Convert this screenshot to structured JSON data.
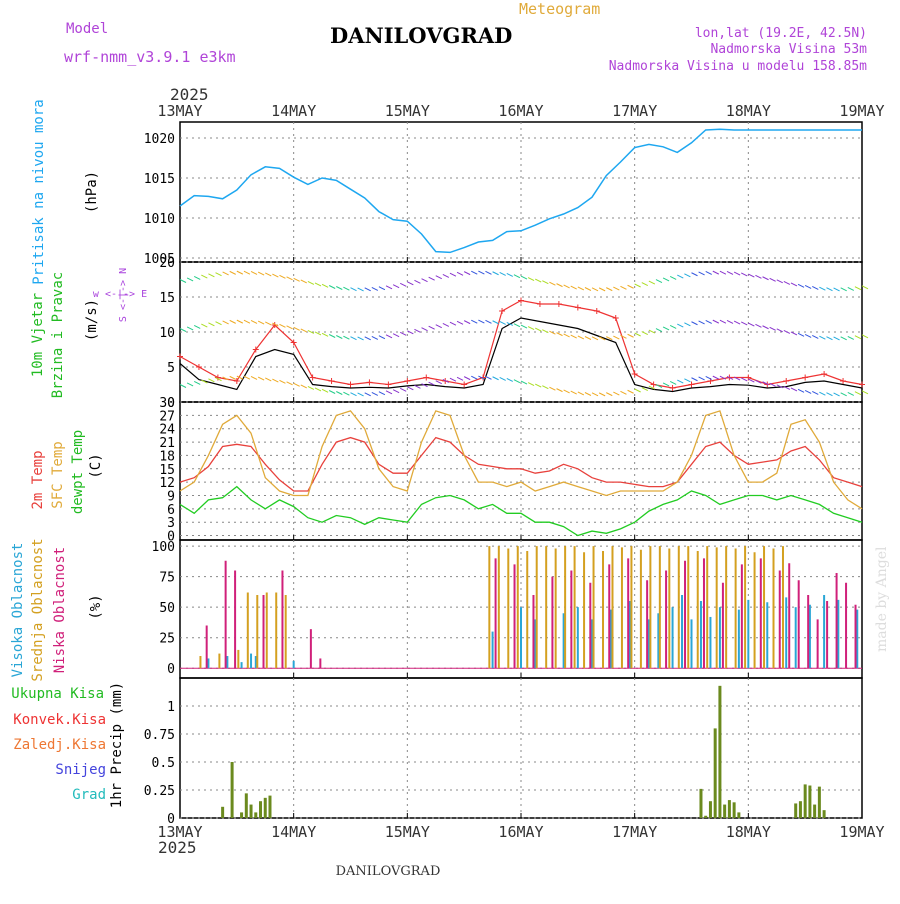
{
  "header": {
    "model_label": "Model",
    "model_name": "wrf-nmm_v3.9.1 e3km",
    "meteogram_label": "Meteogram",
    "station": "DANILOVGRAD",
    "coords": "lon,lat (19.2E, 42.5N)",
    "altitude": "Nadmorska Visina 53m",
    "model_altitude": "Nadmorska Visina u modelu 158.85m",
    "year": "2025",
    "footer_station": "DANILOVGRAD",
    "watermark": "made by Angel"
  },
  "colors": {
    "pressure": "#1ea7f0",
    "temp2m": "#e8413c",
    "sfc": "#e0aa3a",
    "dewpt": "#22cc22",
    "high": "#2aa6d6",
    "mid": "#d4a020",
    "low": "#d0207a",
    "total": "#22bb22",
    "conv": "#ee3333",
    "frozen": "#ee7733",
    "snow": "#4444dd",
    "grad": "#22bbbb",
    "wind_label": "#aa44dd"
  },
  "chart_data": [
    {
      "type": "line",
      "panel": "pressure",
      "ylabel": "Pritisak na nivou mora",
      "unit": "(hPa)",
      "x_ticks": [
        "13MAY",
        "14MAY",
        "15MAY",
        "16MAY",
        "17MAY",
        "18MAY",
        "19MAY"
      ],
      "ylim": [
        1004.5,
        1022
      ],
      "yticks": [
        1005,
        1010,
        1015,
        1020
      ],
      "x_hours": [
        0,
        3,
        6,
        9,
        12,
        15,
        18,
        21,
        24,
        27,
        30,
        33,
        36,
        39,
        42,
        45,
        48,
        51,
        54,
        57,
        60,
        63,
        66,
        69,
        72,
        75,
        78,
        81,
        84,
        87,
        90,
        93,
        96,
        99,
        102,
        105,
        108,
        111,
        114,
        117,
        120,
        123,
        126,
        129,
        132,
        135,
        138,
        141,
        144
      ],
      "values": [
        1011.5,
        1012.8,
        1012.7,
        1012.4,
        1013.5,
        1015.4,
        1016.4,
        1016.2,
        1015.1,
        1014.2,
        1015.0,
        1014.7,
        1013.6,
        1012.5,
        1010.8,
        1009.8,
        1009.6,
        1008.0,
        1005.8,
        1005.7,
        1006.3,
        1007.0,
        1007.2,
        1008.3,
        1008.4,
        1009.1,
        1009.9,
        1010.5,
        1011.3,
        1012.6,
        1015.3,
        1017.0,
        1018.8,
        1019.2,
        1018.9,
        1018.2,
        1019.4,
        1021.0,
        1021.1,
        1021.0,
        1021.0,
        1021.0,
        1021.0,
        1021.0,
        1021.0,
        1021.0,
        1021.0,
        1021.0,
        1021.0
      ]
    },
    {
      "type": "line",
      "panel": "wind",
      "ylabel1": "10m Vjetar",
      "ylabel2": "Brzina i Pravac",
      "unit": "(m/s)",
      "compass": "w <-|-> E",
      "compass2": "S <-|-> N",
      "ylim": [
        0,
        20
      ],
      "yticks": [
        0,
        5,
        10,
        15,
        20
      ],
      "series": [
        {
          "name": "speed",
          "values": [
            5.5,
            3.2,
            2.5,
            1.8,
            6.5,
            7.5,
            6.8,
            2.5,
            2.2,
            2.0,
            2.1,
            2.0,
            2.3,
            2.5,
            2.2,
            2.0,
            2.5,
            10.5,
            12.0,
            11.5,
            11.0,
            10.5,
            9.5,
            8.5,
            2.5,
            1.8,
            1.5,
            2.0,
            2.2,
            2.5,
            2.4,
            2.0,
            2.2,
            2.8,
            3.0,
            2.5,
            2.0
          ]
        },
        {
          "name": "gust",
          "values": [
            6.5,
            5.0,
            3.5,
            3.0,
            7.5,
            11.0,
            8.5,
            3.5,
            3.0,
            2.5,
            2.8,
            2.5,
            3.0,
            3.5,
            3.0,
            2.5,
            3.5,
            13.0,
            14.5,
            14.0,
            14.0,
            13.5,
            13.0,
            12.0,
            4.0,
            2.5,
            2.0,
            2.5,
            3.0,
            3.5,
            3.5,
            2.5,
            3.0,
            3.5,
            4.0,
            3.0,
            2.5
          ]
        }
      ]
    },
    {
      "type": "line",
      "panel": "temperature",
      "ylabel1": "2m Temp",
      "ylabel2": "SFC Temp",
      "ylabel3": "dewpt Temp",
      "unit": "(C)",
      "ylim": [
        -1,
        30
      ],
      "yticks": [
        0,
        3,
        6,
        9,
        12,
        15,
        18,
        21,
        24,
        27,
        30
      ],
      "series": [
        {
          "name": "2m Temp",
          "values": [
            12,
            13,
            15.5,
            20,
            20.5,
            20,
            16,
            12.5,
            10,
            10,
            16,
            21,
            22,
            21,
            16,
            14,
            14,
            18,
            22,
            21,
            18,
            16,
            15.5,
            15,
            15,
            14,
            14.5,
            16,
            15,
            13,
            12,
            12,
            11.5,
            11,
            11,
            12,
            16,
            20,
            21,
            18,
            16,
            16.5,
            17,
            19,
            20,
            17,
            13,
            12,
            11
          ]
        },
        {
          "name": "SFC Temp",
          "values": [
            10,
            12,
            18,
            25,
            27,
            23,
            13,
            10,
            9,
            9,
            20,
            27,
            28,
            24,
            15,
            11,
            10,
            21,
            28,
            27,
            18,
            12,
            12,
            11,
            12,
            10,
            11,
            12,
            11,
            10,
            9,
            10,
            10,
            10,
            10,
            12,
            18,
            27,
            28,
            18,
            12,
            12,
            14,
            25,
            26,
            21,
            12,
            8,
            6
          ]
        },
        {
          "name": "dewpt Temp",
          "values": [
            7,
            5,
            8,
            8.5,
            11,
            8,
            6,
            8,
            6.5,
            4,
            3,
            4.5,
            4,
            2.5,
            4,
            3.5,
            3,
            7,
            8.5,
            9,
            8,
            6,
            7,
            5,
            5,
            3,
            3,
            2,
            0,
            1,
            0.5,
            1.5,
            3,
            5.5,
            7,
            8,
            10,
            9,
            7,
            8,
            9,
            9,
            8,
            9,
            8,
            7,
            5,
            4,
            3
          ]
        }
      ]
    },
    {
      "type": "bar",
      "panel": "clouds",
      "ylabel1": "Visoka Oblacnost",
      "ylabel2": "Srednja Oblacnost",
      "ylabel3": "Niska Oblacnost",
      "unit": "(%)",
      "ylim": [
        0,
        100
      ],
      "yticks": [
        0,
        25,
        50,
        75,
        100
      ],
      "series": [
        {
          "name": "Visoka Oblacnost",
          "x_hours": [
            6,
            10,
            13,
            15,
            16,
            24,
            66,
            72,
            75,
            81,
            84,
            87,
            91,
            95,
            99,
            101,
            104,
            106,
            108,
            110,
            112,
            114,
            118,
            120,
            124,
            128,
            130,
            133,
            136,
            139,
            143
          ],
          "values": [
            8,
            10,
            5,
            12,
            10,
            6,
            30,
            50,
            40,
            45,
            50,
            40,
            48,
            55,
            40,
            45,
            50,
            60,
            40,
            55,
            42,
            50,
            48,
            56,
            54,
            58,
            50,
            52,
            60,
            56,
            48
          ]
        },
        {
          "name": "Srednja Oblacnost",
          "x_hours": [
            4,
            8,
            12,
            14,
            16,
            18,
            20,
            22,
            65,
            67,
            69,
            71,
            73,
            75,
            77,
            79,
            81,
            83,
            85,
            87,
            89,
            91,
            93,
            95,
            97,
            99,
            101,
            103,
            105,
            107,
            109,
            111,
            113,
            115,
            117,
            119,
            121,
            123,
            125,
            127
          ],
          "values": [
            10,
            12,
            15,
            62,
            60,
            62,
            62,
            60,
            100,
            100,
            98,
            100,
            96,
            100,
            100,
            98,
            100,
            100,
            95,
            100,
            96,
            100,
            99,
            100,
            97,
            100,
            100,
            98,
            100,
            100,
            96,
            100,
            99,
            100,
            98,
            100,
            95,
            100,
            98,
            100
          ]
        },
        {
          "name": "Niska Oblacnost",
          "x_hours": [
            5,
            9,
            11,
            13,
            17,
            21,
            27,
            29,
            66,
            70,
            74,
            78,
            82,
            86,
            90,
            94,
            98,
            102,
            106,
            110,
            114,
            118,
            122,
            126,
            128,
            130,
            132,
            134,
            136,
            138,
            140,
            142
          ],
          "values": [
            35,
            88,
            80,
            0,
            60,
            80,
            32,
            8,
            90,
            85,
            60,
            75,
            80,
            70,
            85,
            90,
            72,
            80,
            88,
            90,
            70,
            85,
            90,
            80,
            86,
            72,
            60,
            40,
            55,
            78,
            70,
            52
          ]
        }
      ]
    },
    {
      "type": "bar",
      "panel": "precip",
      "ylabel": "1hr Precip (mm)",
      "legend": [
        "Ukupna Kisa",
        "Konvek.Kisa",
        "Zaledj.Kisa",
        "Snijeg",
        "Grad"
      ],
      "ylim": [
        0,
        1.2
      ],
      "yticks": [
        0,
        0.25,
        0.5,
        0.75,
        1
      ],
      "ytick_labels": [
        "0",
        "0.25",
        "0.5",
        "0.75",
        "1"
      ],
      "x_hours": [
        9,
        11,
        13,
        14,
        15,
        16,
        17,
        18,
        19,
        110,
        111,
        112,
        113,
        114,
        115,
        116,
        117,
        118,
        130,
        131,
        132,
        133,
        134,
        135,
        136
      ],
      "values": [
        0.1,
        0.5,
        0.05,
        0.22,
        0.12,
        0.05,
        0.15,
        0.18,
        0.2,
        0.26,
        0.02,
        0.15,
        0.8,
        1.18,
        0.12,
        0.16,
        0.14,
        0.05,
        0.13,
        0.15,
        0.3,
        0.29,
        0.12,
        0.28,
        0.07
      ]
    }
  ]
}
